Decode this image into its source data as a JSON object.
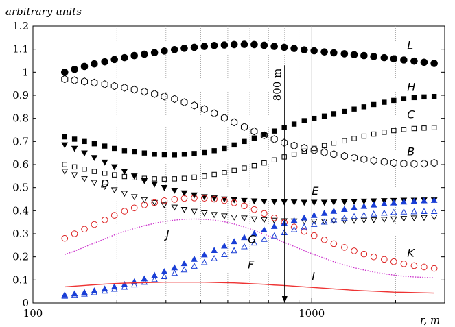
{
  "chart_data": {
    "type": "scatter",
    "ylabel": "arbitrary units",
    "xlabel": "r, m",
    "x_scale": "log",
    "xlim": [
      100,
      3000
    ],
    "ylim": [
      0,
      1.2
    ],
    "x_ticks": [
      {
        "value": 100,
        "label": "100"
      },
      {
        "value": 1000,
        "label": "1000"
      }
    ],
    "x_minor_ticks": [
      200,
      300,
      400,
      500,
      600,
      700,
      800,
      900,
      2000
    ],
    "y_ticks": [
      {
        "value": 0,
        "label": "0"
      },
      {
        "value": 0.1,
        "label": "0.1"
      },
      {
        "value": 0.2,
        "label": "0.2"
      },
      {
        "value": 0.3,
        "label": "0.3"
      },
      {
        "value": 0.4,
        "label": "0.4"
      },
      {
        "value": 0.5,
        "label": "0.5"
      },
      {
        "value": 0.6,
        "label": "0.6"
      },
      {
        "value": 0.7,
        "label": "0.7"
      },
      {
        "value": 0.8,
        "label": "0.8"
      },
      {
        "value": 0.9,
        "label": "0.9"
      },
      {
        "value": 1,
        "label": "1"
      },
      {
        "value": 1.1,
        "label": "1.1"
      },
      {
        "value": 1.2,
        "label": "1.2"
      }
    ],
    "grid": "dotted vertical",
    "annotation": {
      "text": "800 m",
      "x": 800,
      "y_from": 1.03,
      "y_to": 0
    },
    "x": [
      130,
      141,
      153,
      166,
      181,
      196,
      213,
      231,
      251,
      273,
      296,
      322,
      349,
      379,
      412,
      447,
      486,
      527,
      573,
      622,
      675,
      734,
      797,
      865,
      940,
      1020,
      1110,
      1200,
      1310,
      1420,
      1540,
      1670,
      1820,
      1970,
      2140,
      2330,
      2530,
      2750
    ],
    "series": [
      {
        "label": "L",
        "marker": "filled-circle",
        "color": "#000000",
        "label_at": [
          2200,
          1.1
        ],
        "values": [
          1.0,
          1.012,
          1.025,
          1.036,
          1.045,
          1.055,
          1.063,
          1.072,
          1.078,
          1.085,
          1.092,
          1.098,
          1.104,
          1.108,
          1.112,
          1.116,
          1.118,
          1.12,
          1.121,
          1.12,
          1.117,
          1.112,
          1.108,
          1.103,
          1.097,
          1.093,
          1.088,
          1.084,
          1.08,
          1.076,
          1.072,
          1.068,
          1.063,
          1.058,
          1.053,
          1.048,
          1.043,
          1.038
        ]
      },
      {
        "label": "H",
        "marker": "filled-square",
        "color": "#000000",
        "label_at": [
          2200,
          0.92
        ],
        "values": [
          0.72,
          0.71,
          0.7,
          0.69,
          0.68,
          0.67,
          0.66,
          0.655,
          0.65,
          0.645,
          0.643,
          0.642,
          0.645,
          0.648,
          0.652,
          0.66,
          0.67,
          0.685,
          0.7,
          0.715,
          0.73,
          0.745,
          0.76,
          0.775,
          0.79,
          0.8,
          0.81,
          0.82,
          0.83,
          0.84,
          0.85,
          0.86,
          0.87,
          0.878,
          0.885,
          0.89,
          0.893,
          0.895
        ]
      },
      {
        "label": "C",
        "marker": "open-square",
        "color": "#000000",
        "label_at": [
          2200,
          0.8
        ],
        "values": [
          0.6,
          0.59,
          0.58,
          0.57,
          0.562,
          0.555,
          0.548,
          0.543,
          0.54,
          0.538,
          0.537,
          0.538,
          0.54,
          0.545,
          0.55,
          0.557,
          0.565,
          0.575,
          0.585,
          0.595,
          0.607,
          0.62,
          0.633,
          0.645,
          0.658,
          0.67,
          0.682,
          0.693,
          0.703,
          0.713,
          0.723,
          0.732,
          0.74,
          0.747,
          0.752,
          0.756,
          0.758,
          0.76
        ]
      },
      {
        "label": "B",
        "marker": "open-hexagon",
        "color": "#000000",
        "label_at": [
          2200,
          0.64
        ],
        "values": [
          0.97,
          0.965,
          0.96,
          0.955,
          0.948,
          0.94,
          0.933,
          0.925,
          0.916,
          0.906,
          0.895,
          0.884,
          0.87,
          0.856,
          0.84,
          0.822,
          0.802,
          0.783,
          0.763,
          0.744,
          0.727,
          0.71,
          0.695,
          0.682,
          0.672,
          0.662,
          0.653,
          0.645,
          0.637,
          0.63,
          0.623,
          0.617,
          0.612,
          0.607,
          0.604,
          0.603,
          0.604,
          0.607
        ]
      },
      {
        "label": "E",
        "marker": "filled-triangle-down",
        "color": "#000000",
        "label_at": [
          1000,
          0.47
        ],
        "values": [
          0.685,
          0.67,
          0.65,
          0.63,
          0.61,
          0.59,
          0.57,
          0.55,
          0.53,
          0.515,
          0.5,
          0.488,
          0.477,
          0.468,
          0.46,
          0.455,
          0.45,
          0.447,
          0.444,
          0.442,
          0.44,
          0.439,
          0.438,
          0.437,
          0.436,
          0.436,
          0.436,
          0.437,
          0.438,
          0.44,
          0.441,
          0.442,
          0.443,
          0.444,
          0.445,
          0.445,
          0.446,
          0.446
        ]
      },
      {
        "label": "D",
        "marker": "open-triangle-down",
        "color": "#000000",
        "label_at": [
          175,
          0.5
        ],
        "values": [
          0.57,
          0.555,
          0.538,
          0.522,
          0.505,
          0.49,
          0.475,
          0.46,
          0.447,
          0.435,
          0.425,
          0.415,
          0.405,
          0.397,
          0.39,
          0.383,
          0.377,
          0.372,
          0.368,
          0.364,
          0.361,
          0.358,
          0.356,
          0.355,
          0.354,
          0.354,
          0.354,
          0.355,
          0.356,
          0.357,
          0.358,
          0.36,
          0.362,
          0.364,
          0.366,
          0.368,
          0.37,
          0.372
        ]
      },
      {
        "label": "K",
        "marker": "open-circle",
        "color": "#dd2222",
        "label_at": [
          2200,
          0.2
        ],
        "values": [
          0.28,
          0.3,
          0.32,
          0.34,
          0.36,
          0.38,
          0.398,
          0.412,
          0.425,
          0.435,
          0.443,
          0.449,
          0.453,
          0.455,
          0.454,
          0.45,
          0.444,
          0.434,
          0.421,
          0.405,
          0.388,
          0.369,
          0.349,
          0.329,
          0.31,
          0.292,
          0.274,
          0.257,
          0.241,
          0.226,
          0.212,
          0.2,
          0.189,
          0.179,
          0.17,
          0.162,
          0.156,
          0.15
        ]
      },
      {
        "label": "J",
        "marker": "dotted-line",
        "color": "#cc33cc",
        "label_at": [
          300,
          0.28
        ],
        "values": [
          0.21,
          0.225,
          0.242,
          0.26,
          0.278,
          0.295,
          0.31,
          0.323,
          0.335,
          0.345,
          0.353,
          0.359,
          0.363,
          0.364,
          0.363,
          0.359,
          0.352,
          0.342,
          0.33,
          0.315,
          0.298,
          0.281,
          0.263,
          0.245,
          0.227,
          0.21,
          0.194,
          0.179,
          0.165,
          0.153,
          0.143,
          0.134,
          0.127,
          0.121,
          0.116,
          0.113,
          0.111,
          0.11
        ]
      },
      {
        "label": "G",
        "marker": "filled-triangle-up",
        "color": "#1a3fd6",
        "label_at": [
          590,
          0.26
        ],
        "values": [
          0.035,
          0.04,
          0.046,
          0.053,
          0.061,
          0.07,
          0.08,
          0.092,
          0.105,
          0.12,
          0.136,
          0.153,
          0.171,
          0.19,
          0.209,
          0.228,
          0.247,
          0.266,
          0.284,
          0.301,
          0.317,
          0.332,
          0.346,
          0.358,
          0.369,
          0.38,
          0.389,
          0.398,
          0.406,
          0.413,
          0.419,
          0.425,
          0.43,
          0.434,
          0.438,
          0.441,
          0.443,
          0.445
        ]
      },
      {
        "label": "F",
        "marker": "open-triangle-up",
        "color": "#1a3fd6",
        "label_at": [
          590,
          0.15
        ],
        "values": [
          0.03,
          0.034,
          0.039,
          0.045,
          0.052,
          0.06,
          0.069,
          0.079,
          0.09,
          0.102,
          0.115,
          0.129,
          0.144,
          0.16,
          0.176,
          0.193,
          0.21,
          0.227,
          0.244,
          0.26,
          0.276,
          0.291,
          0.305,
          0.318,
          0.33,
          0.341,
          0.351,
          0.36,
          0.368,
          0.375,
          0.381,
          0.386,
          0.39,
          0.393,
          0.395,
          0.396,
          0.397,
          0.397
        ]
      },
      {
        "label": "I",
        "marker": "solid-line",
        "color": "#ee3333",
        "label_at": [
          1000,
          0.1
        ],
        "values": [
          0.07,
          0.073,
          0.076,
          0.079,
          0.082,
          0.084,
          0.086,
          0.087,
          0.088,
          0.089,
          0.09,
          0.09,
          0.09,
          0.09,
          0.09,
          0.089,
          0.088,
          0.087,
          0.085,
          0.083,
          0.081,
          0.078,
          0.076,
          0.073,
          0.07,
          0.067,
          0.064,
          0.061,
          0.058,
          0.055,
          0.053,
          0.051,
          0.049,
          0.047,
          0.046,
          0.045,
          0.044,
          0.043
        ]
      }
    ]
  }
}
